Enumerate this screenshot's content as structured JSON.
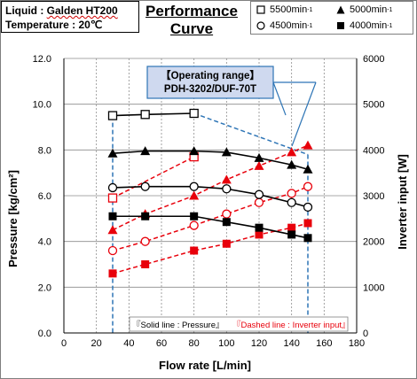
{
  "info": {
    "liquid_label": "Liquid :",
    "liquid_value": "Galden HT200",
    "temperature_label": "Temperature :",
    "temperature_value": "20℃"
  },
  "title": {
    "line1": "Performance",
    "line2": "Curve"
  },
  "legend_items": [
    {
      "marker": "open-square",
      "label": "5500min",
      "unit_exp": "-1"
    },
    {
      "marker": "filled-triangle",
      "label": "5000min",
      "unit_exp": "-1"
    },
    {
      "marker": "open-circle",
      "label": "4500min",
      "unit_exp": "-1"
    },
    {
      "marker": "filled-square",
      "label": "4000min",
      "unit_exp": "-1"
    }
  ],
  "annotation": {
    "line1": "【Operating range】",
    "line2": "PDH-3202/DUF-70T"
  },
  "note": {
    "solid": "『Solid line : Pressure』",
    "dashed": "『Dashed line : Inverter input』"
  },
  "colors": {
    "pressure": "#000000",
    "inverter": "#e8000b",
    "operating_range": "#2e75b6",
    "annotation_fill": "#cfd9ef",
    "annotation_border": "#2e75b6",
    "grid": "#8c8c8c"
  },
  "chart_data": {
    "type": "line",
    "xlabel": "Flow rate [L/min]",
    "ylabel_left": "Pressure [kg/cm²]",
    "ylabel_right": "Inverter input [W]",
    "xlim": [
      0,
      180
    ],
    "ylim_left": [
      0.0,
      12.0
    ],
    "ylim_right": [
      0,
      6000
    ],
    "xticks": [
      0,
      20,
      40,
      60,
      80,
      100,
      120,
      140,
      160,
      180
    ],
    "yticks_left": [
      "0.0",
      "2.0",
      "4.0",
      "6.0",
      "8.0",
      "10.0",
      "12.0"
    ],
    "yticks_right": [
      "0",
      "1000",
      "2000",
      "3000",
      "4000",
      "5000",
      "6000"
    ],
    "grid": true,
    "pressure_series": [
      {
        "name": "5500min-1",
        "marker": "open-square",
        "x": [
          30,
          50,
          80
        ],
        "y": [
          9.5,
          9.55,
          9.6
        ]
      },
      {
        "name": "5000min-1",
        "marker": "filled-triangle",
        "x": [
          30,
          50,
          80,
          100,
          120,
          140,
          150
        ],
        "y": [
          7.85,
          7.95,
          7.95,
          7.9,
          7.65,
          7.35,
          7.15
        ]
      },
      {
        "name": "4500min-1",
        "marker": "open-circle",
        "x": [
          30,
          50,
          80,
          100,
          120,
          140,
          150
        ],
        "y": [
          6.35,
          6.4,
          6.4,
          6.3,
          6.05,
          5.7,
          5.5
        ]
      },
      {
        "name": "4000min-1",
        "marker": "filled-square",
        "x": [
          30,
          50,
          80,
          100,
          120,
          140,
          150
        ],
        "y": [
          5.1,
          5.1,
          5.1,
          4.85,
          4.6,
          4.3,
          4.15
        ]
      }
    ],
    "inverter_series": [
      {
        "name": "5500min-1",
        "marker": "open-square",
        "x": [
          30,
          80
        ],
        "y": [
          2950,
          3850
        ]
      },
      {
        "name": "5000min-1",
        "marker": "filled-triangle",
        "x": [
          30,
          50,
          80,
          100,
          120,
          140,
          150
        ],
        "y": [
          2250,
          2600,
          3000,
          3350,
          3650,
          3950,
          4100
        ]
      },
      {
        "name": "4500min-1",
        "marker": "open-circle",
        "x": [
          30,
          50,
          80,
          100,
          120,
          140,
          150
        ],
        "y": [
          1800,
          2000,
          2350,
          2600,
          2850,
          3050,
          3200
        ]
      },
      {
        "name": "4000min-1",
        "marker": "filled-square",
        "x": [
          30,
          50,
          80,
          100,
          120,
          140,
          150
        ],
        "y": [
          1300,
          1500,
          1800,
          1950,
          2150,
          2300,
          2400
        ]
      }
    ],
    "operating_range": {
      "flow_min": 30,
      "flow_max": 150,
      "pressure_top_min": 9.5,
      "pressure_top_max": 7.8
    }
  }
}
